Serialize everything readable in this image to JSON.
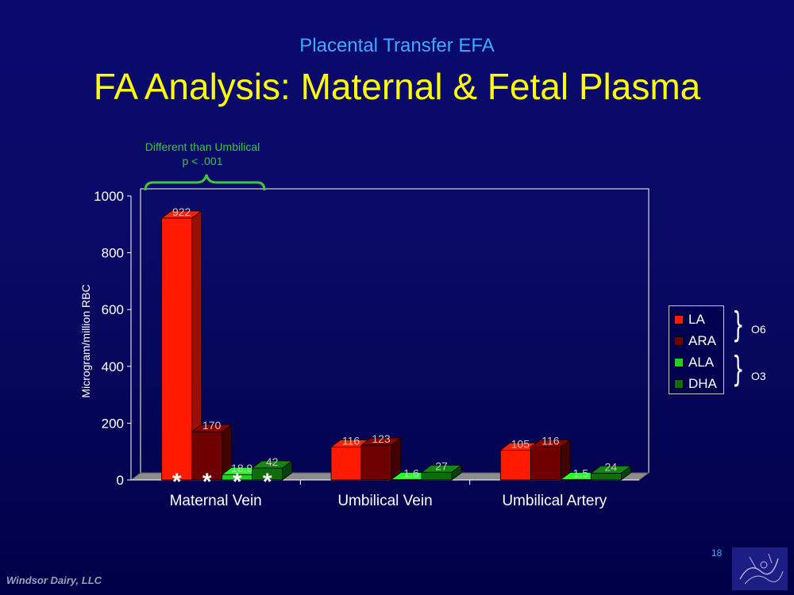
{
  "slide": {
    "subtitle": "Placental Transfer EFA",
    "title": "FA Analysis: Maternal & Fetal Plasma",
    "annotation_line1": "Different  than Umbilical",
    "annotation_line2": "p < .001",
    "page_number": "18",
    "footer": "Windsor Dairy, LLC"
  },
  "legend": {
    "items": [
      {
        "label": "LA",
        "color": "#ff1a00"
      },
      {
        "label": "ARA",
        "color": "#6e0000"
      },
      {
        "label": "ALA",
        "color": "#1ed21e"
      },
      {
        "label": "DHA",
        "color": "#0e6e0e"
      }
    ],
    "groups": [
      "O6",
      "O3"
    ]
  },
  "chart_data": {
    "type": "bar",
    "categories": [
      "Maternal Vein",
      "Umbilical Vein",
      "Umbilical Artery"
    ],
    "series": [
      {
        "name": "LA",
        "color": "#ff1a00",
        "values": [
          922,
          116,
          105
        ],
        "labels": [
          "922",
          "116",
          "105"
        ]
      },
      {
        "name": "ARA",
        "color": "#6e0000",
        "values": [
          170,
          123,
          116
        ],
        "labels": [
          "170",
          "123",
          "116"
        ]
      },
      {
        "name": "ALA",
        "color": "#1ed21e",
        "values": [
          18.9,
          1.6,
          1.5
        ],
        "labels": [
          "18.9",
          "1.6",
          "1.5"
        ]
      },
      {
        "name": "DHA",
        "color": "#0e6e0e",
        "values": [
          42,
          27,
          24
        ],
        "labels": [
          "42",
          "27",
          "24"
        ]
      }
    ],
    "ylabel": "Microgram/million RBC",
    "ylim": [
      0,
      1000
    ],
    "yticks": [
      "0",
      "200",
      "400",
      "600",
      "800",
      "1000"
    ],
    "significance_marker": "*",
    "marked_category": "Maternal Vein",
    "grid": false,
    "legend_position": "right",
    "style": "3d"
  }
}
